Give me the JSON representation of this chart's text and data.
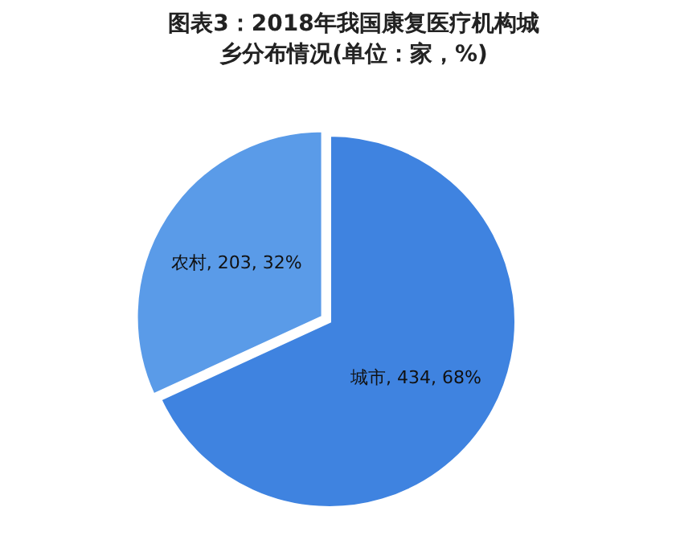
{
  "chart_data": {
    "type": "pie",
    "title": "图表3：2018年我国康复医疗机构城乡分布情况(单位：家，%)",
    "categories": [
      "城市",
      "农村"
    ],
    "values": [
      434,
      203
    ],
    "colors": [
      "#3f83e0",
      "#5a9be8"
    ],
    "value_labels": [
      "434, 68%",
      "203, 32%"
    ],
    "legend": false
  }
}
